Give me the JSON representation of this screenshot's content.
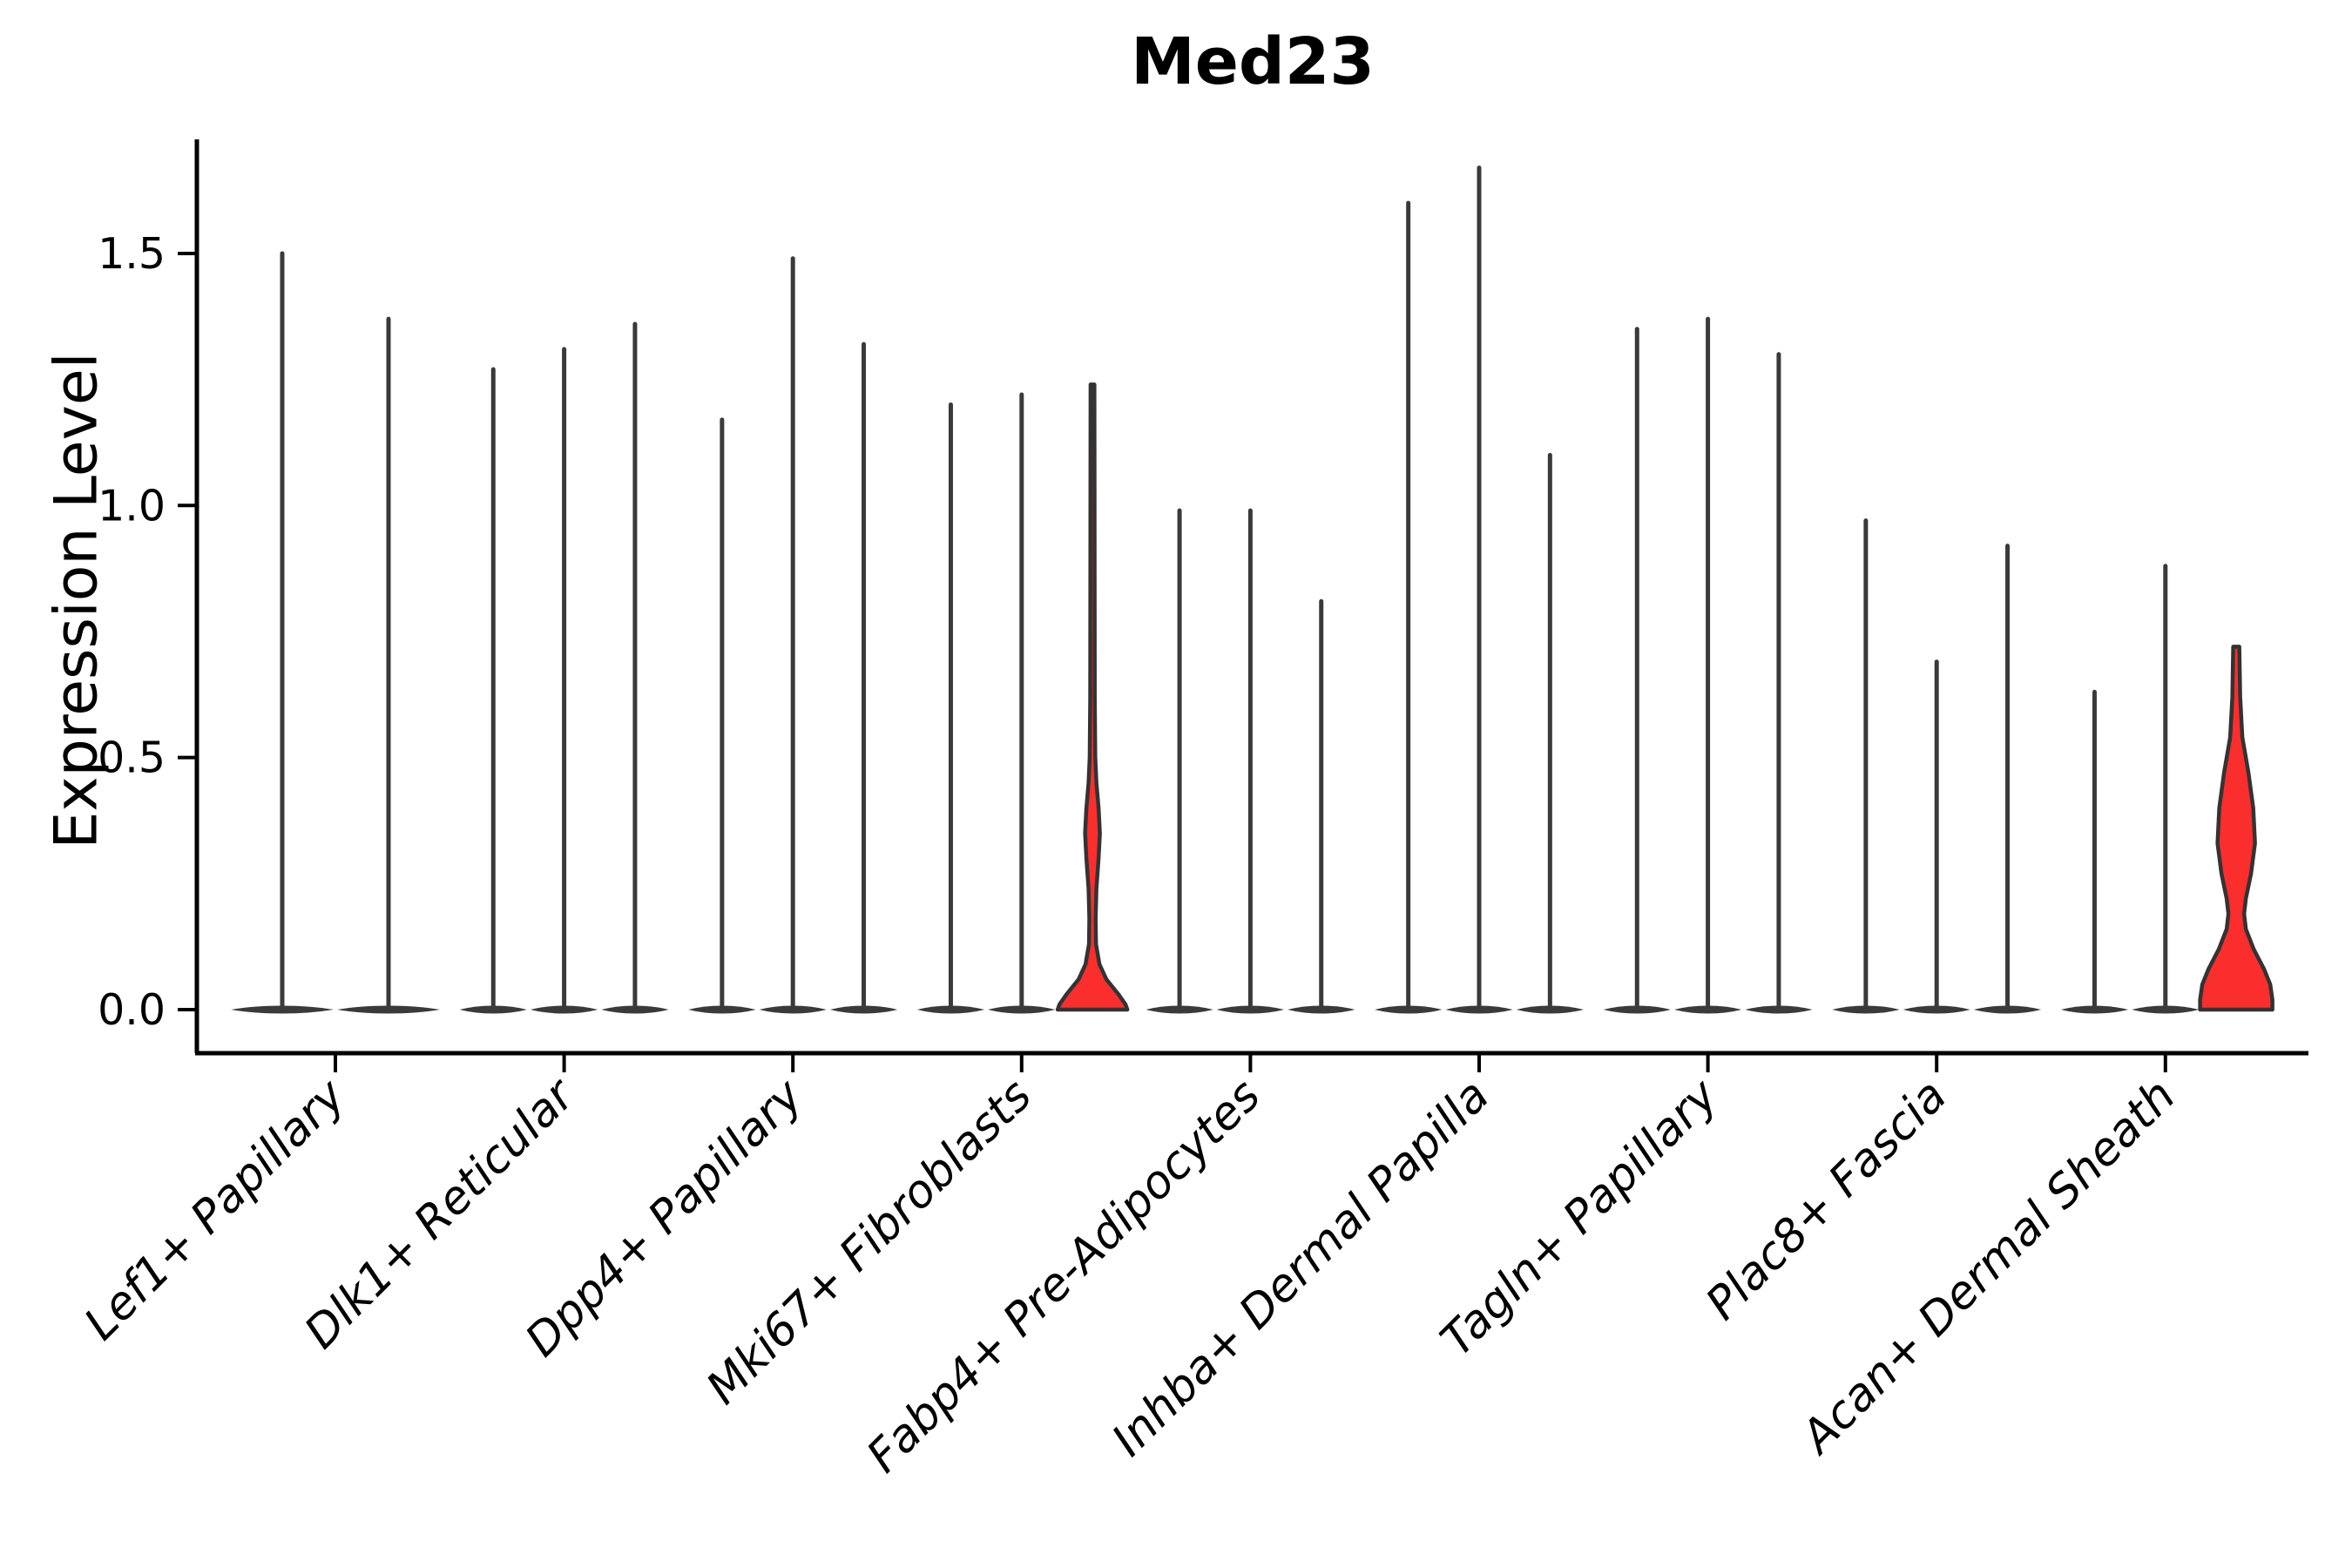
{
  "chart_data": {
    "type": "violin",
    "title": "Med23",
    "ylabel": "Expression Level",
    "xlabel": "",
    "ylim": [
      0,
      1.73
    ],
    "yticks": [
      "0.0",
      "0.5",
      "1.0",
      "1.5"
    ],
    "ytick_values": [
      0,
      0.5,
      1.0,
      1.5
    ],
    "grid": false,
    "legend": null,
    "colors": {
      "highlight_fill": "#fa2e2c",
      "stem": "#3a3a3a",
      "outline": "#333333",
      "axis": "#000000"
    },
    "categories": [
      "Lef1+ Papillary",
      "Dlk1+ Reticular",
      "Dpp4+ Papillary",
      "Mki67+ Fibroblasts",
      "Fabp4+ Pre-Adipocytes",
      "Inhba+ Dermal Papilla",
      "Tagln+ Papillary",
      "Plac8+ Fascia",
      "Acan+ Dermal Sheath"
    ],
    "groups": [
      {
        "category": "Lef1+ Papillary",
        "violins": [
          {
            "max": 1.5
          },
          {
            "max": 1.37
          }
        ]
      },
      {
        "category": "Dlk1+ Reticular",
        "violins": [
          {
            "max": 1.27
          },
          {
            "max": 1.31
          },
          {
            "max": 1.36
          }
        ]
      },
      {
        "category": "Dpp4+ Papillary",
        "violins": [
          {
            "max": 1.17
          },
          {
            "max": 1.49
          },
          {
            "max": 1.32
          }
        ]
      },
      {
        "category": "Mki67+ Fibroblasts",
        "violins": [
          {
            "max": 1.2
          },
          {
            "max": 1.22
          },
          {
            "max": 1.24,
            "highlight": true,
            "profile": [
              [
                1.24,
                2.2
              ],
              [
                0.62,
                2.6
              ],
              [
                0.5,
                3.2
              ],
              [
                0.45,
                4.5
              ],
              [
                0.4,
                7.0
              ],
              [
                0.35,
                8.5
              ],
              [
                0.3,
                7.0
              ],
              [
                0.24,
                4.5
              ],
              [
                0.18,
                3.6
              ],
              [
                0.13,
                4.0
              ],
              [
                0.09,
                8.0
              ],
              [
                0.06,
                16.0
              ],
              [
                0.03,
                30.0
              ],
              [
                0.01,
                38.0
              ],
              [
                0.0,
                40.0
              ]
            ]
          }
        ]
      },
      {
        "category": "Fabp4+ Pre-Adipocytes",
        "violins": [
          {
            "max": 0.99
          },
          {
            "max": 0.99
          },
          {
            "max": 0.81
          }
        ]
      },
      {
        "category": "Inhba+ Dermal Papilla",
        "violins": [
          {
            "max": 1.6
          },
          {
            "max": 1.67
          },
          {
            "max": 1.1
          }
        ]
      },
      {
        "category": "Tagln+ Papillary",
        "violins": [
          {
            "max": 1.35
          },
          {
            "max": 1.37
          },
          {
            "max": 1.3
          }
        ]
      },
      {
        "category": "Plac8+ Fascia",
        "violins": [
          {
            "max": 0.97
          },
          {
            "max": 0.69
          },
          {
            "max": 0.92
          }
        ]
      },
      {
        "category": "Acan+ Dermal Sheath",
        "violins": [
          {
            "max": 0.63
          },
          {
            "max": 0.88
          },
          {
            "max": 0.72,
            "highlight": true,
            "profile": [
              [
                0.72,
                3.5
              ],
              [
                0.62,
                4.5
              ],
              [
                0.54,
                7.0
              ],
              [
                0.47,
                14.0
              ],
              [
                0.4,
                19.5
              ],
              [
                0.33,
                21.5
              ],
              [
                0.27,
                17.0
              ],
              [
                0.22,
                11.0
              ],
              [
                0.19,
                9.0
              ],
              [
                0.16,
                11.0
              ],
              [
                0.12,
                20.0
              ],
              [
                0.08,
                32.0
              ],
              [
                0.05,
                39.0
              ],
              [
                0.02,
                41.5
              ],
              [
                0.0,
                41.5
              ]
            ]
          }
        ]
      }
    ]
  }
}
